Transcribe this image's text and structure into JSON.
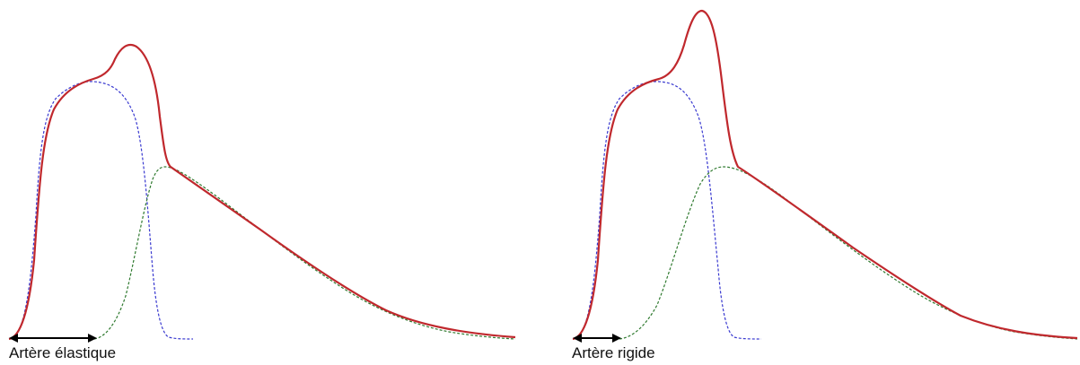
{
  "panels": [
    {
      "label": "Artère élastique"
    },
    {
      "label": "Artère rigide"
    }
  ],
  "colors": {
    "total_wave": "#c0282d",
    "forward_wave": "#3a3ad0",
    "reflected_wave": "#2f7a2f",
    "arrow": "#000000"
  }
}
